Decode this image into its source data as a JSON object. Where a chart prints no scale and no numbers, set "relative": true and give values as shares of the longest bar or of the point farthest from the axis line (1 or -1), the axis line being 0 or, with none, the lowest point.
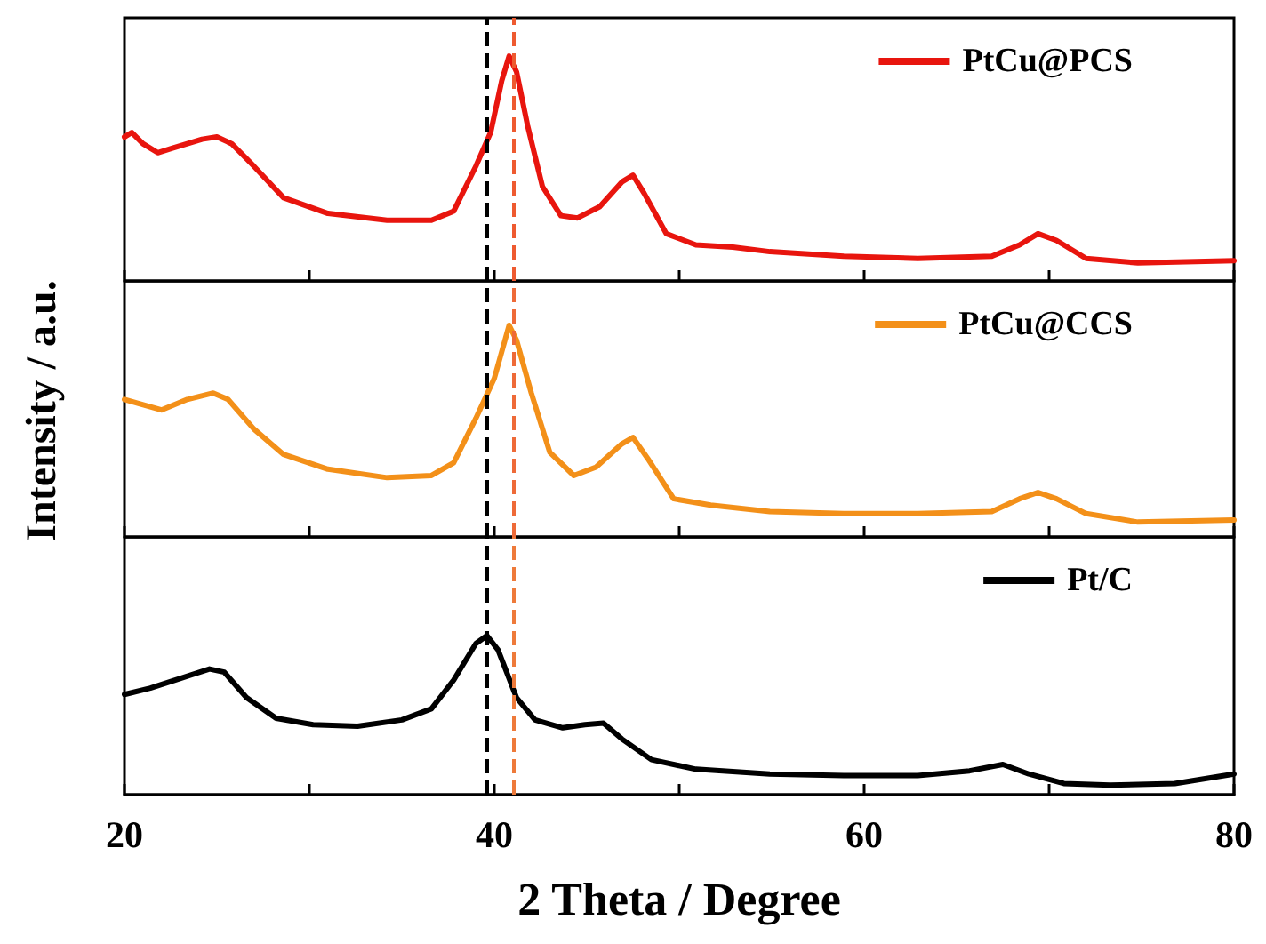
{
  "chart_data": [
    {
      "type": "line",
      "relative": true,
      "xlim": [
        20,
        80
      ],
      "xticks": [
        20,
        {
          "value": 30,
          "label": null
        },
        40,
        {
          "value": 50,
          "label": null
        },
        60,
        {
          "value": 70,
          "label": null
        },
        80
      ],
      "tick_labels": false,
      "legend": "top right",
      "marker": "none",
      "line_style": "solid",
      "grid": false,
      "ref_lines": [
        {
          "axis": "x",
          "value": 39.6,
          "color": "#000000",
          "line_style": "dashed"
        },
        {
          "axis": "x",
          "value": 41,
          "color": "#ee5a30",
          "line_style": "dashed"
        }
      ],
      "series": [
        {
          "name": "PtCu@PCS",
          "color": "#e8150e",
          "x": [
            20,
            20.4,
            21,
            21.8,
            22.6,
            24.2,
            25,
            25.8,
            27,
            28.6,
            31,
            34.2,
            36.6,
            37.8,
            39,
            39.8,
            40.4,
            40.8,
            41.2,
            41.8,
            42.6,
            43.6,
            44.5,
            45.7,
            46.9,
            47.5,
            48.1,
            49.3,
            50.9,
            52.9,
            54.9,
            58.9,
            62.9,
            66.9,
            68.4,
            69.4,
            70.4,
            72,
            74.8,
            80
          ],
          "values": [
            0.64,
            0.66,
            0.61,
            0.57,
            0.59,
            0.63,
            0.64,
            0.61,
            0.51,
            0.37,
            0.3,
            0.27,
            0.27,
            0.31,
            0.51,
            0.66,
            0.89,
            1,
            0.93,
            0.69,
            0.42,
            0.29,
            0.28,
            0.33,
            0.44,
            0.47,
            0.39,
            0.21,
            0.16,
            0.15,
            0.13,
            0.11,
            0.1,
            0.11,
            0.16,
            0.21,
            0.18,
            0.1,
            0.08,
            0.09
          ]
        }
      ]
    },
    {
      "type": "line",
      "relative": true,
      "ylabel": "Intensity / a.u.",
      "xlim": [
        20,
        80
      ],
      "xticks": [
        20,
        {
          "value": 30,
          "label": null
        },
        40,
        {
          "value": 50,
          "label": null
        },
        60,
        {
          "value": 70,
          "label": null
        },
        80
      ],
      "tick_labels": false,
      "legend": "top right",
      "marker": "none",
      "line_style": "solid",
      "grid": false,
      "ref_lines": [
        {
          "axis": "x",
          "value": 39.6,
          "color": "#000000",
          "line_style": "dashed"
        },
        {
          "axis": "x",
          "value": 41,
          "color": "#ee6a38",
          "line_style": "dashed"
        }
      ],
      "series": [
        {
          "name": "PtCu@CCS",
          "color": "#f39019",
          "x": [
            20,
            20.8,
            22,
            23.4,
            24.8,
            25.6,
            27,
            28.6,
            31,
            34.2,
            36.6,
            37.8,
            39,
            40,
            40.8,
            41.2,
            42,
            43,
            44.3,
            45.5,
            46.9,
            47.5,
            48.3,
            49.7,
            51.7,
            54.9,
            58.9,
            62.9,
            66.9,
            68.4,
            69.4,
            70.4,
            72,
            74.8,
            80
          ],
          "values": [
            0.65,
            0.63,
            0.6,
            0.65,
            0.68,
            0.65,
            0.51,
            0.39,
            0.32,
            0.28,
            0.29,
            0.35,
            0.56,
            0.75,
            1,
            0.93,
            0.68,
            0.4,
            0.29,
            0.33,
            0.44,
            0.47,
            0.37,
            0.18,
            0.15,
            0.12,
            0.11,
            0.11,
            0.12,
            0.18,
            0.21,
            0.18,
            0.11,
            0.07,
            0.08
          ]
        }
      ]
    },
    {
      "type": "line",
      "relative": true,
      "xlabel": "2 Theta / Degree",
      "xlim": [
        20,
        80
      ],
      "xticks": [
        20,
        {
          "value": 30,
          "label": null
        },
        40,
        {
          "value": 50,
          "label": null
        },
        60,
        {
          "value": 70,
          "label": null
        },
        80
      ],
      "tick_labels": "x",
      "legend": "top right",
      "marker": "none",
      "line_style": "solid",
      "grid": false,
      "ref_lines": [
        {
          "axis": "x",
          "value": 39.6,
          "color": "#000000",
          "line_style": "dashed"
        },
        {
          "axis": "x",
          "value": 41,
          "color": "#ee7a3a",
          "line_style": "dashed"
        }
      ],
      "series": [
        {
          "name": "Pt/C",
          "color": "#000000",
          "x": [
            20,
            21.4,
            23,
            24.6,
            25.4,
            26.6,
            28.2,
            30.2,
            32.6,
            35,
            36.6,
            37.8,
            39,
            39.6,
            40.2,
            41.2,
            42.2,
            43.7,
            44.9,
            45.9,
            46.9,
            48.5,
            50.9,
            54.9,
            58.9,
            62.9,
            65.7,
            67.5,
            68.9,
            70.8,
            73.3,
            76.8,
            80
          ],
          "values": [
            0.63,
            0.67,
            0.73,
            0.79,
            0.77,
            0.61,
            0.48,
            0.44,
            0.43,
            0.47,
            0.54,
            0.72,
            0.95,
            1,
            0.91,
            0.61,
            0.47,
            0.42,
            0.44,
            0.45,
            0.35,
            0.22,
            0.16,
            0.13,
            0.12,
            0.12,
            0.15,
            0.19,
            0.13,
            0.07,
            0.06,
            0.07,
            0.13
          ]
        }
      ]
    }
  ]
}
